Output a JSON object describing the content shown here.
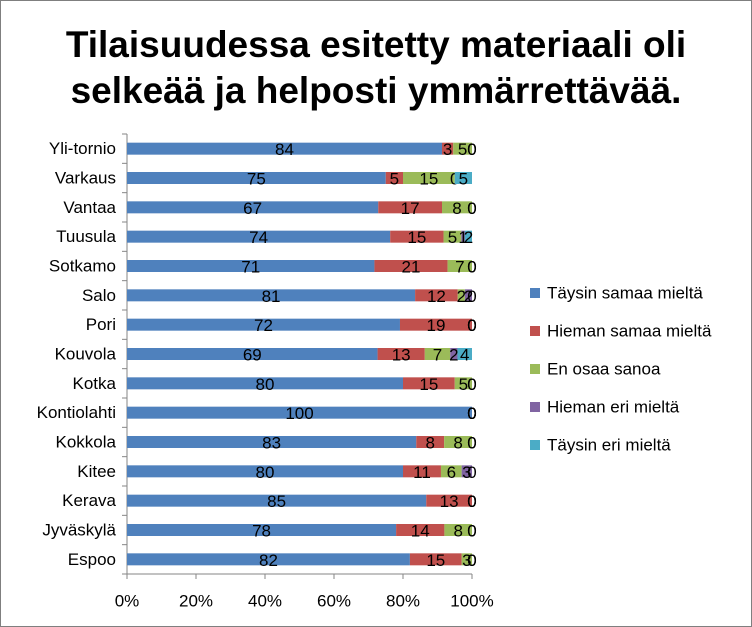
{
  "chart_data": {
    "type": "bar",
    "orientation": "horizontal",
    "stacked": "percent",
    "title": "Tilaisuudessa esitetty materiaali oli selkeää ja helposti ymmärrettävää.",
    "title_lines": [
      "Tilaisuudessa esitetty materiaali oli",
      "selkeää ja helposti ymmärrettävää."
    ],
    "categories": [
      "Yli-tornio",
      "Varkaus",
      "Vantaa",
      "Tuusula",
      "Sotkamo",
      "Salo",
      "Pori",
      "Kouvola",
      "Kotka",
      "Kontiolahti",
      "Kokkola",
      "Kitee",
      "Kerava",
      "Jyväskylä",
      "Espoo"
    ],
    "series": [
      {
        "name": "Täysin samaa mieltä",
        "color": "#4f81bd",
        "values": [
          84,
          75,
          67,
          74,
          71,
          81,
          72,
          69,
          80,
          100,
          83,
          80,
          85,
          78,
          82
        ]
      },
      {
        "name": "Hieman samaa mieltä",
        "color": "#c0504d",
        "values": [
          3,
          5,
          17,
          15,
          21,
          12,
          19,
          13,
          15,
          0,
          8,
          11,
          13,
          14,
          15
        ]
      },
      {
        "name": "En osaa sanoa",
        "color": "#9bbb59",
        "values": [
          5,
          15,
          8,
          5,
          7,
          2,
          0,
          7,
          5,
          0,
          8,
          6,
          0,
          8,
          3
        ]
      },
      {
        "name": "Hieman eri mieltä",
        "color": "#8064a2",
        "values": [
          0,
          0,
          0,
          1,
          0,
          2,
          0,
          2,
          0,
          0,
          0,
          3,
          0,
          0,
          0
        ]
      },
      {
        "name": "Täysin eri mieltä",
        "color": "#4bacc6",
        "values": [
          0,
          5,
          0,
          2,
          0,
          0,
          0,
          4,
          0,
          0,
          0,
          0,
          0,
          0,
          0
        ]
      }
    ],
    "xlim": [
      0,
      100
    ],
    "xticks": [
      "0%",
      "20%",
      "40%",
      "60%",
      "80%",
      "100%"
    ],
    "xlabel": "",
    "ylabel": "",
    "legend_position": "right",
    "grid": false
  }
}
